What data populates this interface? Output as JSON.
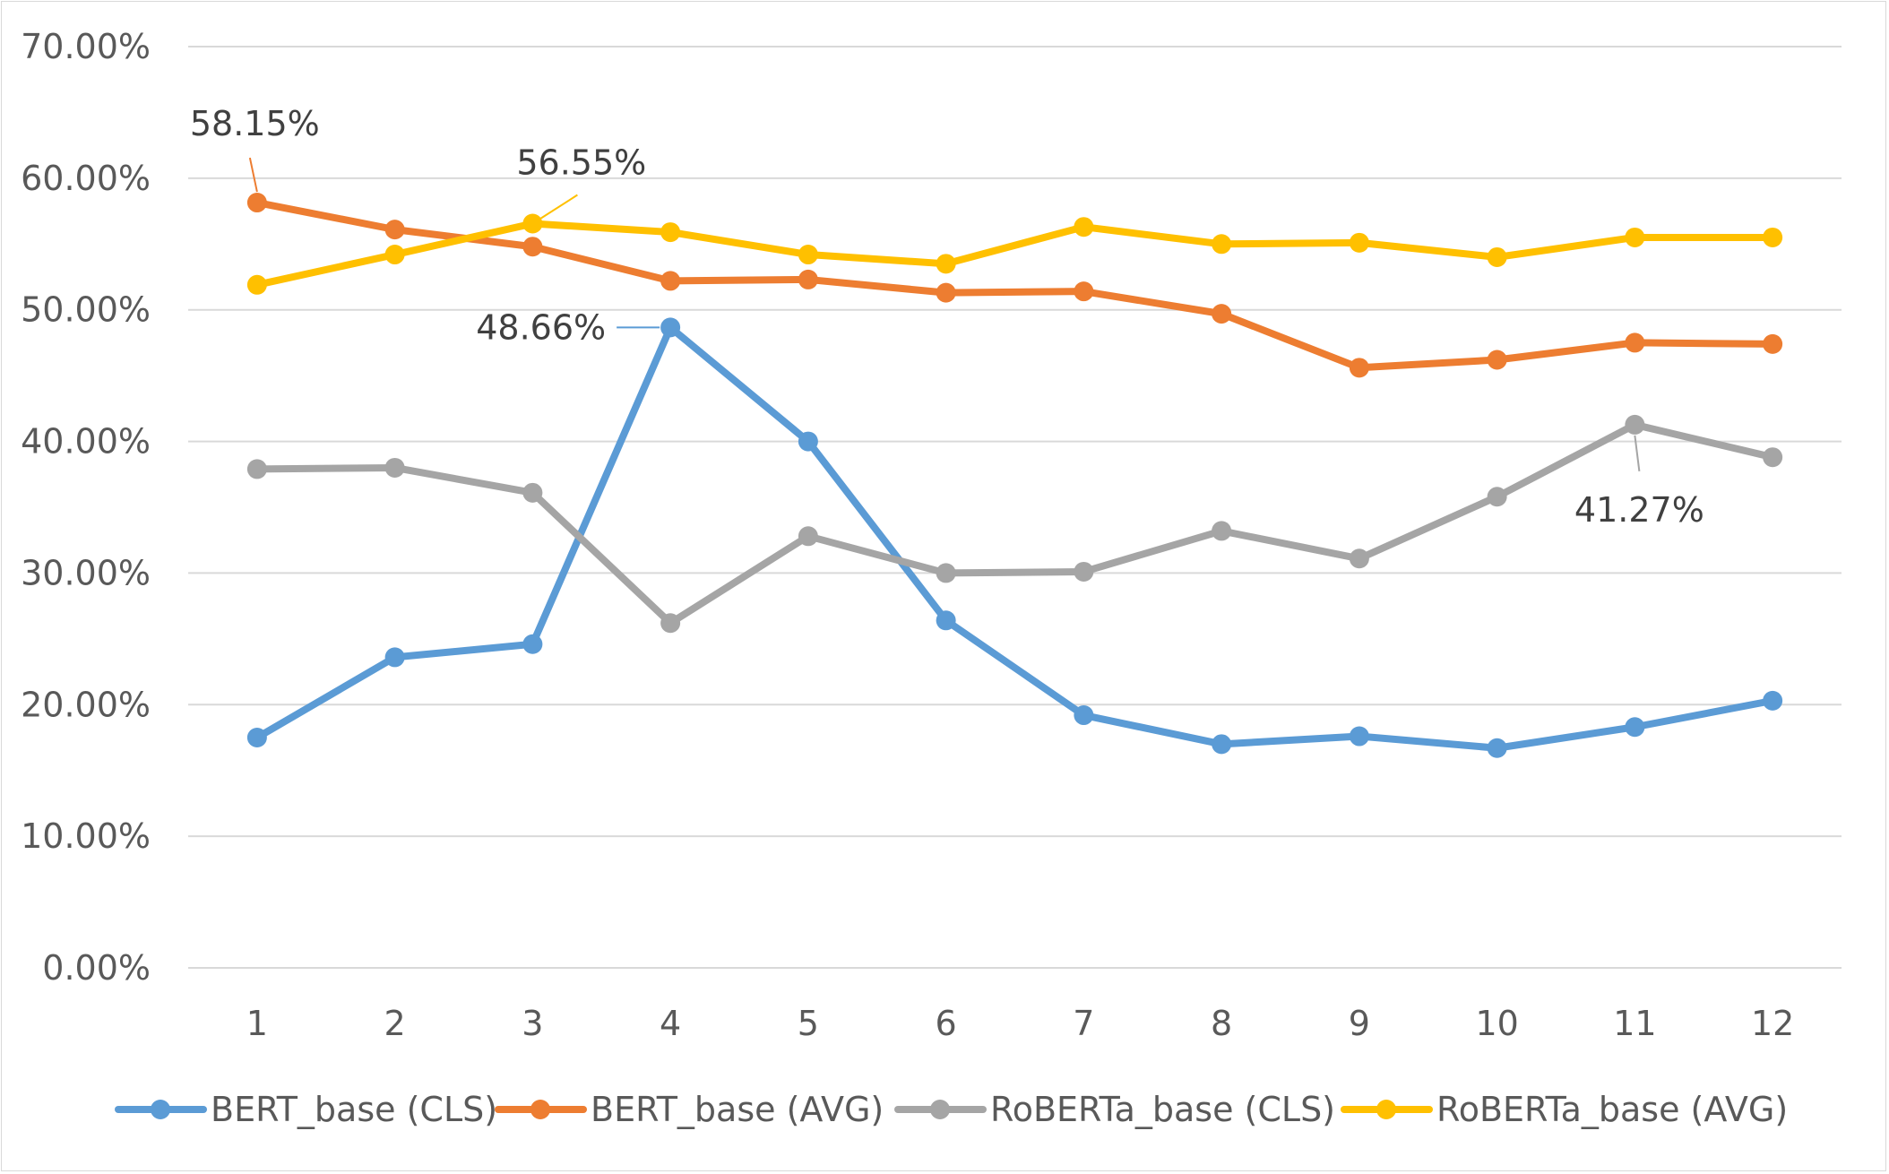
{
  "chart_data": {
    "type": "line",
    "title": "",
    "xlabel": "",
    "ylabel": "",
    "categories": [
      "1",
      "2",
      "3",
      "4",
      "5",
      "6",
      "7",
      "8",
      "9",
      "10",
      "11",
      "12"
    ],
    "ylim": [
      0,
      70
    ],
    "y_ticks": [
      "0.00%",
      "10.00%",
      "20.00%",
      "30.00%",
      "40.00%",
      "50.00%",
      "60.00%",
      "70.00%"
    ],
    "grid": "horizontal",
    "legend_position": "bottom",
    "series": [
      {
        "name": "BERT_base (CLS)",
        "color": "#5B9BD5",
        "values": [
          17.5,
          23.6,
          24.6,
          48.66,
          40.0,
          26.4,
          19.2,
          17.0,
          17.6,
          16.7,
          18.3,
          20.3
        ]
      },
      {
        "name": "BERT_base (AVG)",
        "color": "#ED7D31",
        "values": [
          58.15,
          56.1,
          54.8,
          52.2,
          52.3,
          51.3,
          51.4,
          49.7,
          45.6,
          46.2,
          47.5,
          47.4
        ]
      },
      {
        "name": "RoBERTa_base (CLS)",
        "color": "#A5A5A5",
        "values": [
          37.9,
          38.0,
          36.1,
          26.2,
          32.8,
          30.0,
          30.1,
          33.2,
          31.1,
          35.8,
          41.27,
          38.8
        ]
      },
      {
        "name": "RoBERTa_base (AVG)",
        "color": "#FFC000",
        "values": [
          51.9,
          54.2,
          56.55,
          55.9,
          54.2,
          53.5,
          56.3,
          55.0,
          55.1,
          54.0,
          55.5,
          55.5
        ]
      }
    ],
    "annotations": [
      {
        "series": 1,
        "index": 0,
        "text": "58.15%"
      },
      {
        "series": 3,
        "index": 2,
        "text": "56.55%"
      },
      {
        "series": 0,
        "index": 3,
        "text": "48.66%"
      },
      {
        "series": 2,
        "index": 10,
        "text": "41.27%"
      }
    ]
  }
}
